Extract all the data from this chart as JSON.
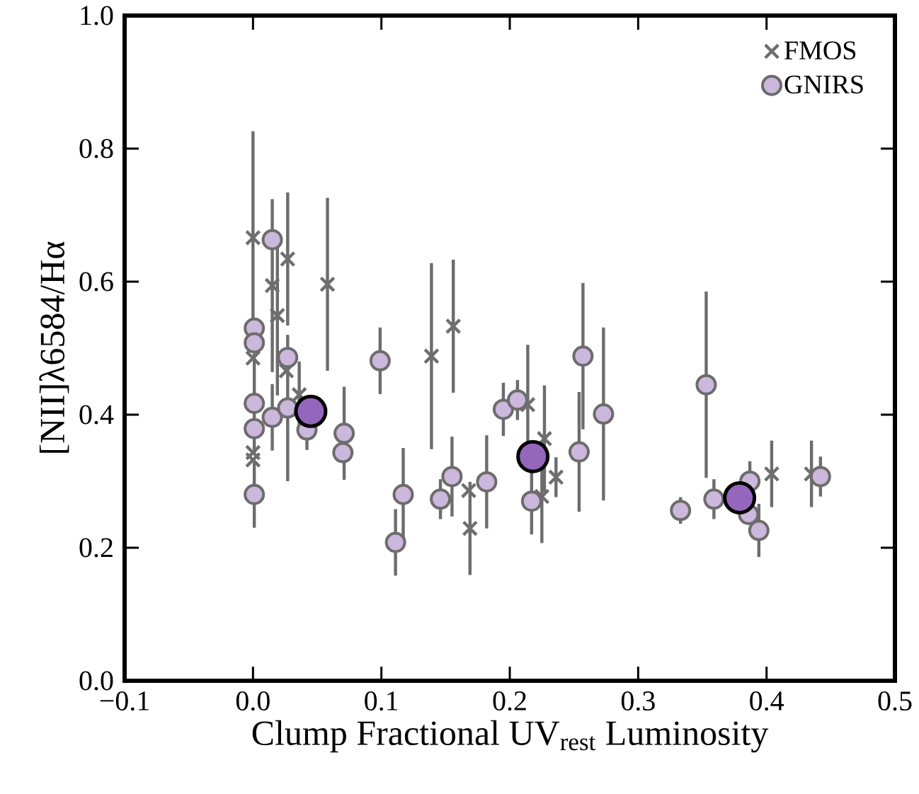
{
  "chart_data": {
    "type": "scatter",
    "xlabel": "Clump Fractional UV$_{rest}$ Luminosity",
    "ylabel": "[NII]λ6584/Hα",
    "xlim": [
      -0.1,
      0.5
    ],
    "ylim": [
      0.0,
      1.0
    ],
    "xticks": [
      {
        "value": -0.1,
        "label": "−0.1"
      },
      {
        "value": 0.0,
        "label": "0.0"
      },
      0.1,
      0.2,
      0.3,
      0.4,
      0.5
    ],
    "yticks": [
      {
        "value": 0.0,
        "label": "0.0"
      },
      0.2,
      0.4,
      0.6,
      0.8,
      {
        "value": 1.0,
        "label": "1.0"
      }
    ],
    "legend": "top right",
    "grid": false,
    "series": [
      {
        "name": "FMOS",
        "marker": "cross",
        "color": "#6e6e6e",
        "x": [
          0.0,
          0.0,
          0.0,
          0.0,
          0.015,
          0.019,
          0.027,
          0.026,
          0.036,
          0.058,
          0.139,
          0.156,
          0.169,
          0.168,
          0.214,
          0.227,
          0.236,
          0.225,
          0.404,
          0.435
        ],
        "values": [
          0.666,
          0.485,
          0.343,
          0.332,
          0.594,
          0.549,
          0.634,
          0.466,
          0.43,
          0.596,
          0.488,
          0.533,
          0.229,
          0.286,
          0.415,
          0.364,
          0.306,
          0.277,
          0.311,
          0.311
        ],
        "errors": [
          0.16,
          null,
          null,
          null,
          0.13,
          0.12,
          0.1,
          null,
          0.05,
          0.13,
          0.14,
          0.1,
          0.07,
          null,
          0.09,
          0.08,
          0.03,
          0.07,
          0.05,
          0.05
        ]
      },
      {
        "name": "GNIRS",
        "marker": "circle",
        "color": "#cbb8dc",
        "x": [
          0.015,
          0.001,
          0.001,
          0.027,
          0.001,
          0.015,
          0.001,
          0.027,
          0.042,
          0.071,
          0.07,
          0.001,
          0.099,
          0.117,
          0.111,
          0.146,
          0.155,
          0.182,
          0.195,
          0.206,
          0.217,
          0.257,
          0.254,
          0.273,
          0.353,
          0.333,
          0.359,
          0.387,
          0.386,
          0.394,
          0.442
        ],
        "values": [
          0.663,
          0.53,
          0.508,
          0.486,
          0.417,
          0.396,
          0.379,
          0.41,
          0.377,
          0.372,
          0.343,
          0.28,
          0.481,
          0.28,
          0.208,
          0.273,
          0.307,
          0.299,
          0.408,
          0.422,
          0.27,
          0.488,
          0.344,
          0.401,
          0.445,
          0.256,
          0.273,
          0.3,
          0.25,
          0.226,
          0.307
        ],
        "errors": [
          null,
          null,
          null,
          null,
          0.075,
          0.05,
          null,
          0.11,
          0.03,
          0.07,
          null,
          0.05,
          0.05,
          0.07,
          0.05,
          0.03,
          0.06,
          0.07,
          0.04,
          0.03,
          0.05,
          0.11,
          0.09,
          0.13,
          0.14,
          0.02,
          0.03,
          0.03,
          null,
          0.04,
          0.03
        ]
      },
      {
        "marker": "circle",
        "color": "#9467bd",
        "x": [
          0.045,
          0.218,
          0.379
        ],
        "values": [
          0.405,
          0.337,
          0.275
        ]
      }
    ]
  }
}
